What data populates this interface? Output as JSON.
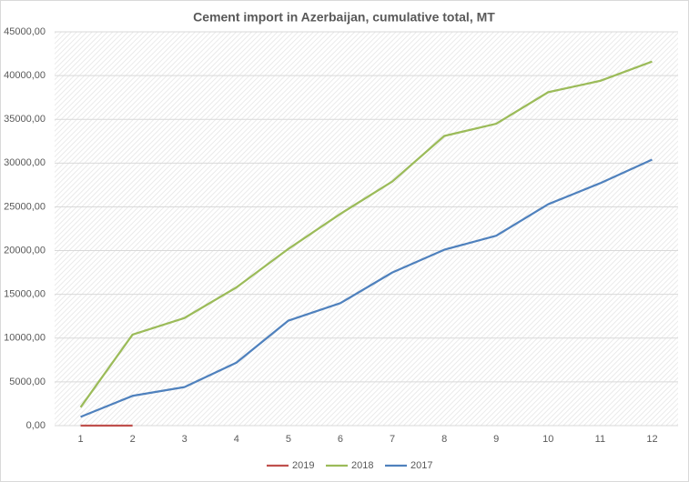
{
  "chart_data": {
    "type": "line",
    "title": "Cement import in Azerbaijan, cumulative total, MT",
    "categories": [
      "1",
      "2",
      "3",
      "4",
      "5",
      "6",
      "7",
      "8",
      "9",
      "10",
      "11",
      "12"
    ],
    "series": [
      {
        "name": "2019",
        "color": "#c0504d",
        "values": [
          0,
          0,
          null,
          null,
          null,
          null,
          null,
          null,
          null,
          null,
          null,
          null
        ]
      },
      {
        "name": "2018",
        "color": "#9bbb59",
        "values": [
          2100,
          10400,
          12300,
          15800,
          20200,
          24200,
          27900,
          33100,
          34500,
          38100,
          39400,
          41600
        ]
      },
      {
        "name": "2017",
        "color": "#4f81bd",
        "values": [
          1000,
          3400,
          4400,
          7200,
          12000,
          14000,
          17500,
          20100,
          21700,
          25300,
          27700,
          30400
        ]
      }
    ],
    "ylim": [
      0,
      45000
    ],
    "yticks": [
      {
        "value": 0,
        "label": "0,00"
      },
      {
        "value": 5000,
        "label": "5000,00"
      },
      {
        "value": 10000,
        "label": "10000,00"
      },
      {
        "value": 15000,
        "label": "15000,00"
      },
      {
        "value": 20000,
        "label": "20000,00"
      },
      {
        "value": 25000,
        "label": "25000,00"
      },
      {
        "value": 30000,
        "label": "30000,00"
      },
      {
        "value": 35000,
        "label": "35000,00"
      },
      {
        "value": 40000,
        "label": "40000,00"
      },
      {
        "value": 45000,
        "label": "45000,00"
      }
    ],
    "grid": true,
    "legend": "bottom"
  }
}
